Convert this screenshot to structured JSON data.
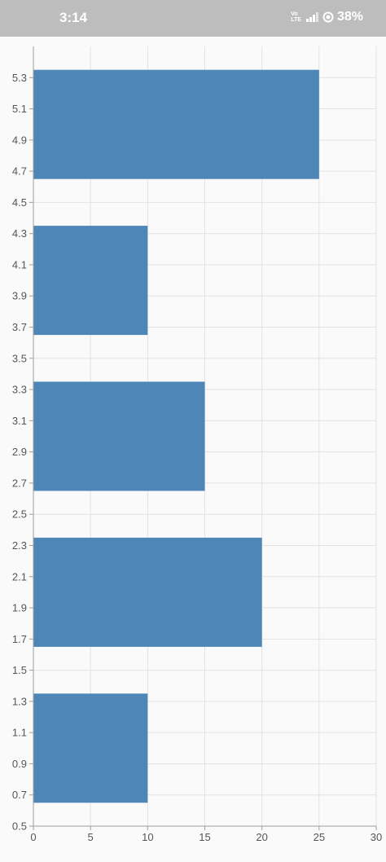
{
  "status_bar": {
    "time": "3:14",
    "volte_top": "Vo",
    "volte_bottom": "LTE",
    "battery": "38%"
  },
  "chart_data": {
    "type": "bar",
    "orientation": "horizontal",
    "bar_color": "#4d86b7",
    "bars": [
      {
        "y": 1.0,
        "value": 10
      },
      {
        "y": 2.0,
        "value": 20
      },
      {
        "y": 3.0,
        "value": 15
      },
      {
        "y": 4.0,
        "value": 10
      },
      {
        "y": 5.0,
        "value": 25
      }
    ],
    "bar_height": 0.7,
    "xlim": [
      0,
      30
    ],
    "ylim": [
      0.5,
      5.5
    ],
    "x_ticks": [
      "0",
      "5",
      "10",
      "15",
      "20",
      "25",
      "30"
    ],
    "y_ticks": [
      "0.5",
      "0.7",
      "0.9",
      "1.1",
      "1.3",
      "1.5",
      "1.7",
      "1.9",
      "2.1",
      "2.3",
      "2.5",
      "2.7",
      "2.9",
      "3.1",
      "3.3",
      "3.5",
      "3.7",
      "3.9",
      "4.1",
      "4.3",
      "4.5",
      "4.7",
      "4.9",
      "5.1",
      "5.3"
    ],
    "grid": true
  }
}
